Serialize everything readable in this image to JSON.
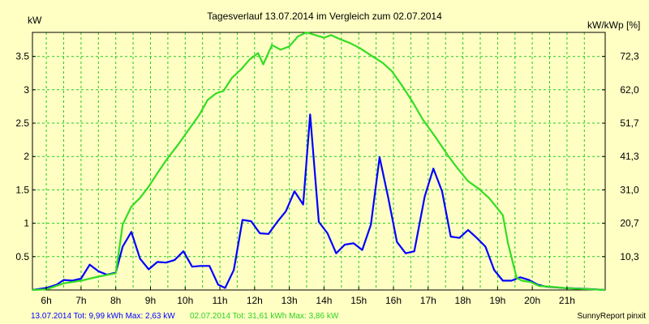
{
  "chart_data": {
    "type": "line",
    "title": "Tagesverlauf 13.07.2014 im Vergleich zum 02.07.2014",
    "ylabel_left": "kW",
    "ylabel_right": "kW/kWp [%]",
    "xlim": [
      5.6,
      22.1
    ],
    "ylim": [
      0,
      3.86
    ],
    "x_ticks": [
      {
        "x": 6,
        "label": "6h"
      },
      {
        "x": 7,
        "label": "7h"
      },
      {
        "x": 8,
        "label": "8h"
      },
      {
        "x": 9,
        "label": "9h"
      },
      {
        "x": 10,
        "label": "10h"
      },
      {
        "x": 11,
        "label": "11h"
      },
      {
        "x": 12,
        "label": "12h"
      },
      {
        "x": 13,
        "label": "13h"
      },
      {
        "x": 14,
        "label": "14h"
      },
      {
        "x": 15,
        "label": "15h"
      },
      {
        "x": 16,
        "label": "16h"
      },
      {
        "x": 17,
        "label": "17h"
      },
      {
        "x": 18,
        "label": "18h"
      },
      {
        "x": 19,
        "label": "19h"
      },
      {
        "x": 20,
        "label": "20h"
      },
      {
        "x": 21,
        "label": "21h"
      }
    ],
    "y_ticks_left": [
      {
        "v": 0.5,
        "label": "0.5"
      },
      {
        "v": 1,
        "label": "1"
      },
      {
        "v": 1.5,
        "label": "1.5"
      },
      {
        "v": 2,
        "label": "2"
      },
      {
        "v": 2.5,
        "label": "2.5"
      },
      {
        "v": 3,
        "label": "3"
      },
      {
        "v": 3.5,
        "label": "3.5"
      }
    ],
    "y_ticks_right": [
      {
        "v": 0.5,
        "label": "10,3"
      },
      {
        "v": 1,
        "label": "20,7"
      },
      {
        "v": 1.5,
        "label": "31,0"
      },
      {
        "v": 2,
        "label": "41,3"
      },
      {
        "v": 2.5,
        "label": "51,7"
      },
      {
        "v": 3,
        "label": "62,0"
      },
      {
        "v": 3.5,
        "label": "72,3"
      }
    ],
    "vgrid": [
      6,
      6.5,
      7,
      7.5,
      8,
      8.5,
      9,
      9.5,
      10,
      10.5,
      11,
      11.5,
      12,
      12.5,
      13,
      13.5,
      14,
      14.5,
      15,
      15.5,
      16,
      16.5,
      17,
      17.5,
      18,
      18.5,
      19,
      19.5,
      20,
      20.5,
      21,
      21.5
    ],
    "hgrid": [
      0.5,
      1,
      1.5,
      2,
      2.5,
      3,
      3.5
    ],
    "grid": true,
    "series": [
      {
        "name": "13.07.2014",
        "color": "#0000ff",
        "points": [
          [
            5.6,
            0
          ],
          [
            6.0,
            0.03
          ],
          [
            6.3,
            0.08
          ],
          [
            6.5,
            0.15
          ],
          [
            6.75,
            0.14
          ],
          [
            7.0,
            0.17
          ],
          [
            7.25,
            0.38
          ],
          [
            7.5,
            0.28
          ],
          [
            7.75,
            0.23
          ],
          [
            8.0,
            0.26
          ],
          [
            8.2,
            0.65
          ],
          [
            8.45,
            0.87
          ],
          [
            8.7,
            0.47
          ],
          [
            8.95,
            0.31
          ],
          [
            9.2,
            0.42
          ],
          [
            9.45,
            0.41
          ],
          [
            9.7,
            0.45
          ],
          [
            9.95,
            0.58
          ],
          [
            10.2,
            0.35
          ],
          [
            10.45,
            0.36
          ],
          [
            10.7,
            0.36
          ],
          [
            10.95,
            0.08
          ],
          [
            11.15,
            0.03
          ],
          [
            11.4,
            0.3
          ],
          [
            11.65,
            1.05
          ],
          [
            11.9,
            1.03
          ],
          [
            12.15,
            0.85
          ],
          [
            12.4,
            0.84
          ],
          [
            12.65,
            1.02
          ],
          [
            12.9,
            1.18
          ],
          [
            13.15,
            1.48
          ],
          [
            13.4,
            1.28
          ],
          [
            13.6,
            2.63
          ],
          [
            13.85,
            1.02
          ],
          [
            14.1,
            0.85
          ],
          [
            14.35,
            0.55
          ],
          [
            14.6,
            0.68
          ],
          [
            14.85,
            0.7
          ],
          [
            15.1,
            0.6
          ],
          [
            15.35,
            0.98
          ],
          [
            15.6,
            1.99
          ],
          [
            15.85,
            1.38
          ],
          [
            16.1,
            0.72
          ],
          [
            16.35,
            0.55
          ],
          [
            16.6,
            0.58
          ],
          [
            16.9,
            1.4
          ],
          [
            17.15,
            1.82
          ],
          [
            17.4,
            1.48
          ],
          [
            17.65,
            0.8
          ],
          [
            17.9,
            0.78
          ],
          [
            18.15,
            0.9
          ],
          [
            18.4,
            0.78
          ],
          [
            18.65,
            0.65
          ],
          [
            18.9,
            0.3
          ],
          [
            19.15,
            0.14
          ],
          [
            19.4,
            0.14
          ],
          [
            19.65,
            0.19
          ],
          [
            19.9,
            0.15
          ],
          [
            20.15,
            0.08
          ],
          [
            20.4,
            0.05
          ],
          [
            20.9,
            0.03
          ],
          [
            21.4,
            0.02
          ],
          [
            21.8,
            0.01
          ],
          [
            22.1,
            0
          ]
        ]
      },
      {
        "name": "02.07.2014",
        "color": "#33dd22",
        "points": [
          [
            5.6,
            0
          ],
          [
            6.0,
            0.01
          ],
          [
            6.5,
            0.1
          ],
          [
            7.0,
            0.14
          ],
          [
            7.5,
            0.2
          ],
          [
            8.0,
            0.25
          ],
          [
            8.2,
            0.98
          ],
          [
            8.45,
            1.25
          ],
          [
            8.7,
            1.38
          ],
          [
            8.95,
            1.55
          ],
          [
            9.2,
            1.75
          ],
          [
            9.5,
            1.98
          ],
          [
            9.8,
            2.18
          ],
          [
            10.1,
            2.4
          ],
          [
            10.4,
            2.62
          ],
          [
            10.65,
            2.85
          ],
          [
            10.9,
            2.95
          ],
          [
            11.1,
            2.98
          ],
          [
            11.35,
            3.18
          ],
          [
            11.6,
            3.3
          ],
          [
            11.85,
            3.45
          ],
          [
            12.1,
            3.55
          ],
          [
            12.25,
            3.38
          ],
          [
            12.5,
            3.67
          ],
          [
            12.75,
            3.6
          ],
          [
            13.0,
            3.65
          ],
          [
            13.25,
            3.8
          ],
          [
            13.5,
            3.86
          ],
          [
            13.75,
            3.82
          ],
          [
            14.0,
            3.78
          ],
          [
            14.2,
            3.82
          ],
          [
            14.45,
            3.76
          ],
          [
            14.75,
            3.7
          ],
          [
            15.05,
            3.62
          ],
          [
            15.4,
            3.5
          ],
          [
            15.7,
            3.4
          ],
          [
            15.95,
            3.28
          ],
          [
            16.25,
            3.06
          ],
          [
            16.55,
            2.82
          ],
          [
            16.85,
            2.55
          ],
          [
            17.2,
            2.3
          ],
          [
            17.55,
            2.03
          ],
          [
            17.85,
            1.82
          ],
          [
            18.15,
            1.63
          ],
          [
            18.45,
            1.52
          ],
          [
            18.75,
            1.38
          ],
          [
            19.0,
            1.22
          ],
          [
            19.15,
            1.12
          ],
          [
            19.3,
            0.7
          ],
          [
            19.55,
            0.18
          ],
          [
            19.7,
            0.14
          ],
          [
            19.95,
            0.12
          ],
          [
            20.2,
            0.06
          ],
          [
            20.5,
            0.05
          ],
          [
            20.9,
            0.03
          ],
          [
            21.3,
            0.02
          ],
          [
            21.7,
            0.01
          ],
          [
            22.1,
            0
          ]
        ]
      }
    ],
    "footer_left_series1": "13.07.2014 Tot: 9,99 kWh Max: 2,63 kW",
    "footer_left_series2": "02.07.2014 Tot: 31,61 kWh Max: 3,86 kW",
    "footer_right": "SunnyReport pinxit",
    "colors": {
      "background": "#ffffc4",
      "grid": "#22cc22",
      "series1": "#0000ff",
      "series2": "#33dd22"
    }
  }
}
